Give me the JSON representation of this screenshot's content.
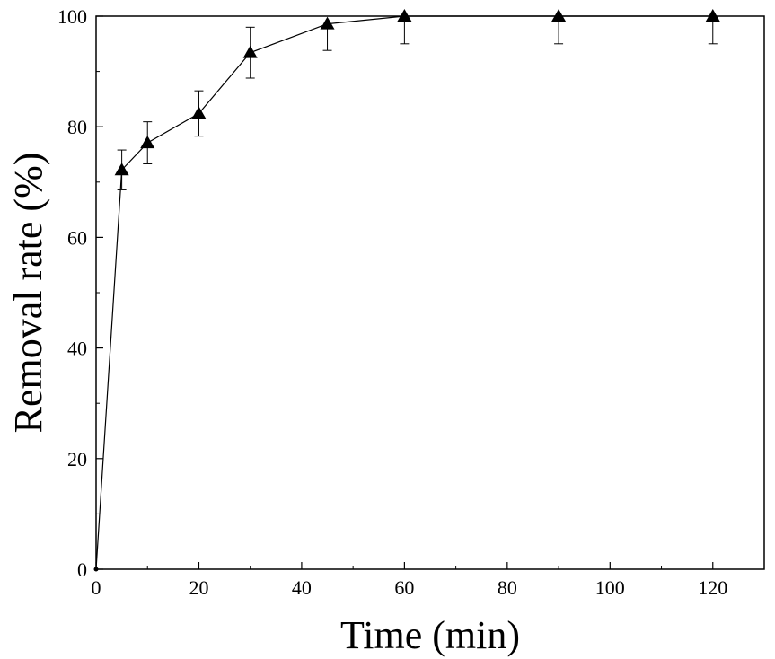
{
  "chart_data": {
    "type": "line",
    "title": "",
    "xlabel": "Time (min)",
    "ylabel": "Removal rate (%)",
    "xlim": [
      0,
      130
    ],
    "ylim": [
      0,
      100
    ],
    "x_ticks": [
      0,
      20,
      40,
      60,
      80,
      100,
      120
    ],
    "y_ticks": [
      0,
      20,
      40,
      60,
      80,
      100
    ],
    "grid": false,
    "legend": "none",
    "marker": "triangle",
    "color": "#000000",
    "series": [
      {
        "x": [
          0,
          5,
          10,
          20,
          30,
          45,
          60,
          90,
          120
        ],
        "y": [
          0,
          72.2,
          77.1,
          82.4,
          93.4,
          98.6,
          100,
          100,
          100
        ],
        "error": [
          0,
          3.6,
          3.8,
          4.1,
          4.6,
          4.8,
          5.0,
          5.0,
          5.0
        ]
      }
    ]
  }
}
